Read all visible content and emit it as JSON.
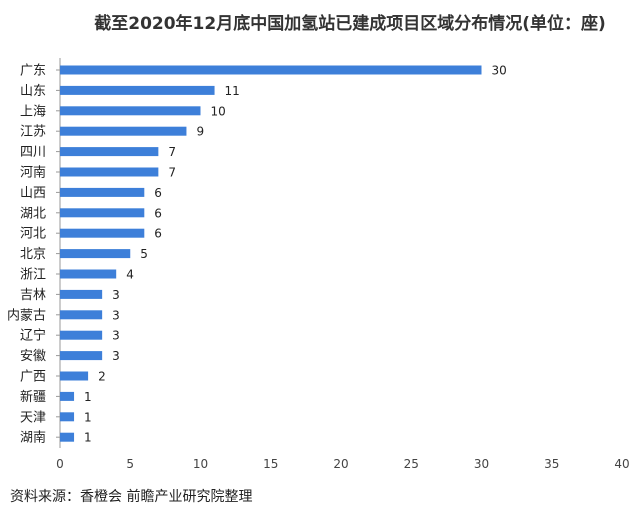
{
  "title": "截至2020年12月底中国加氢站已建成项目区域分布情况(单位：座)",
  "source": "资料来源：香橙会 前瞻产业研究院整理",
  "colors": {
    "bar": "#3d7fd9",
    "axis": "#999999"
  },
  "chart_data": {
    "type": "bar",
    "orientation": "horizontal",
    "title": "截至2020年12月底中国加氢站已建成项目区域分布情况(单位：座)",
    "xlabel": "",
    "ylabel": "",
    "categories": [
      "广东",
      "山东",
      "上海",
      "江苏",
      "四川",
      "河南",
      "山西",
      "湖北",
      "河北",
      "北京",
      "浙江",
      "吉林",
      "内蒙古",
      "辽宁",
      "安徽",
      "广西",
      "新疆",
      "天津",
      "湖南"
    ],
    "values": [
      30,
      11,
      10,
      9,
      7,
      7,
      6,
      6,
      6,
      5,
      4,
      3,
      3,
      3,
      3,
      2,
      1,
      1,
      1
    ],
    "xlim": [
      0,
      40
    ],
    "xticks": [
      0,
      5,
      10,
      15,
      20,
      25,
      30,
      35,
      40
    ],
    "grid": false,
    "data_labels": true
  }
}
